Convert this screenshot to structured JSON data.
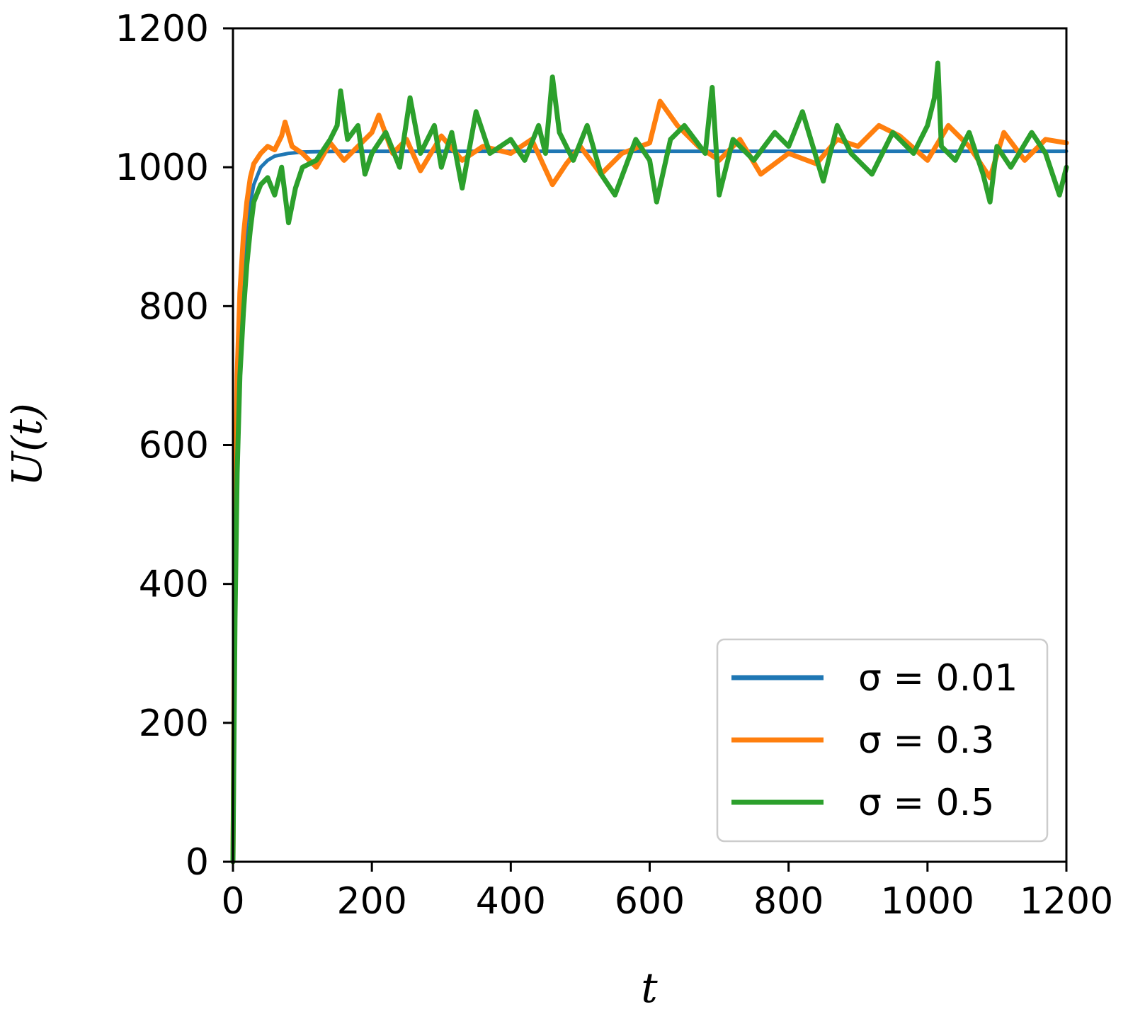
{
  "chart_data": {
    "type": "line",
    "title": "",
    "xlabel": "t",
    "ylabel": "U(t)",
    "xlim": [
      0,
      1200
    ],
    "ylim": [
      0,
      1200
    ],
    "xticks": [
      0,
      200,
      400,
      600,
      800,
      1000,
      1200
    ],
    "yticks": [
      0,
      200,
      400,
      600,
      800,
      1000,
      1200
    ],
    "grid": false,
    "legend_position": "lower-right",
    "series": [
      {
        "name": "σ = 0.01",
        "color": "#1f77b4",
        "x": [
          0,
          3,
          6,
          10,
          15,
          20,
          30,
          40,
          50,
          60,
          80,
          100,
          150,
          200,
          300,
          400,
          500,
          600,
          700,
          800,
          900,
          1000,
          1100,
          1200
        ],
        "y": [
          0,
          400,
          620,
          760,
          860,
          920,
          975,
          1000,
          1010,
          1016,
          1020,
          1022,
          1023,
          1023,
          1023,
          1023,
          1023,
          1023,
          1023,
          1023,
          1023,
          1023,
          1023,
          1023
        ]
      },
      {
        "name": "σ = 0.3",
        "color": "#ff7f0e",
        "x": [
          0,
          3,
          6,
          10,
          15,
          20,
          25,
          30,
          40,
          50,
          60,
          70,
          75,
          85,
          100,
          120,
          140,
          160,
          180,
          200,
          210,
          230,
          250,
          270,
          300,
          330,
          360,
          400,
          430,
          460,
          480,
          500,
          530,
          560,
          600,
          615,
          640,
          670,
          700,
          730,
          760,
          800,
          840,
          870,
          900,
          930,
          960,
          1000,
          1030,
          1060,
          1090,
          1110,
          1140,
          1170,
          1200
        ],
        "y": [
          0,
          450,
          700,
          820,
          900,
          950,
          985,
          1005,
          1020,
          1030,
          1025,
          1045,
          1065,
          1030,
          1020,
          1000,
          1035,
          1010,
          1030,
          1050,
          1075,
          1020,
          1040,
          995,
          1045,
          1010,
          1030,
          1020,
          1040,
          975,
          1005,
          1030,
          990,
          1020,
          1035,
          1095,
          1060,
          1030,
          1010,
          1040,
          990,
          1020,
          1005,
          1040,
          1030,
          1060,
          1045,
          1010,
          1060,
          1030,
          985,
          1050,
          1010,
          1040,
          1035
        ]
      },
      {
        "name": "σ = 0.5",
        "color": "#2ca02c",
        "x": [
          0,
          3,
          6,
          10,
          15,
          20,
          25,
          30,
          40,
          50,
          60,
          70,
          80,
          90,
          100,
          120,
          140,
          150,
          155,
          165,
          180,
          190,
          200,
          220,
          240,
          255,
          270,
          290,
          300,
          315,
          330,
          350,
          370,
          400,
          420,
          440,
          450,
          460,
          470,
          490,
          510,
          530,
          550,
          580,
          600,
          610,
          630,
          650,
          680,
          690,
          700,
          720,
          750,
          780,
          800,
          820,
          850,
          870,
          890,
          920,
          950,
          980,
          1000,
          1010,
          1015,
          1020,
          1040,
          1060,
          1080,
          1090,
          1100,
          1120,
          1150,
          1170,
          1190,
          1200
        ],
        "y": [
          0,
          350,
          560,
          700,
          790,
          860,
          910,
          950,
          975,
          985,
          960,
          1000,
          920,
          970,
          1000,
          1010,
          1040,
          1060,
          1110,
          1040,
          1060,
          990,
          1020,
          1050,
          1000,
          1100,
          1020,
          1060,
          1000,
          1050,
          970,
          1080,
          1020,
          1040,
          1010,
          1060,
          1020,
          1130,
          1050,
          1010,
          1060,
          990,
          960,
          1040,
          1010,
          950,
          1040,
          1060,
          1020,
          1115,
          960,
          1040,
          1010,
          1050,
          1030,
          1080,
          980,
          1060,
          1020,
          990,
          1050,
          1020,
          1060,
          1100,
          1150,
          1030,
          1010,
          1050,
          990,
          950,
          1030,
          1000,
          1050,
          1020,
          960,
          1000
        ]
      }
    ]
  }
}
